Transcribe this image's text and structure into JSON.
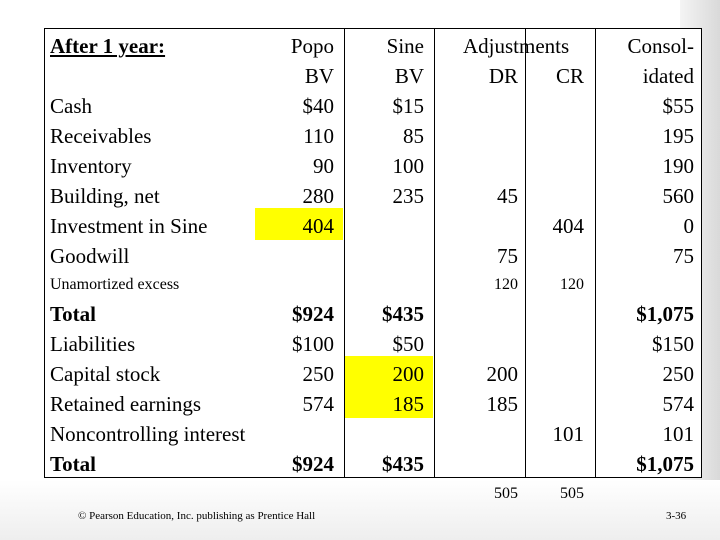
{
  "heading": "After 1 year:",
  "columns": {
    "popo": [
      "Popo",
      "BV"
    ],
    "sine": [
      "Sine",
      "BV"
    ],
    "adj": "Adjustments",
    "dr": "DR",
    "cr": "CR",
    "cons": [
      "Consol-",
      "idated"
    ]
  },
  "rows": [
    {
      "label": "Cash",
      "popo": "$40",
      "sine": "$15",
      "dr": "",
      "cr": "",
      "cons": "$55"
    },
    {
      "label": "Receivables",
      "popo": "110",
      "sine": "85",
      "dr": "",
      "cr": "",
      "cons": "195"
    },
    {
      "label": "Inventory",
      "popo": "90",
      "sine": "100",
      "dr": "",
      "cr": "",
      "cons": "190"
    },
    {
      "label": "Building, net",
      "popo": "280",
      "sine": "235",
      "dr": "45",
      "cr": "",
      "cons": "560"
    },
    {
      "label": "Investment in Sine",
      "popo": "404",
      "sine": "",
      "dr": "",
      "cr": "404",
      "cons": "0"
    },
    {
      "label": "Goodwill",
      "popo": "",
      "sine": "",
      "dr": "75",
      "cr": "",
      "cons": "75"
    }
  ],
  "unamortized": {
    "label": "Unamortized excess",
    "dr": "120",
    "cr": "120"
  },
  "total_assets": {
    "label": "Total",
    "popo": "$924",
    "sine": "$435",
    "cons": "$1,075"
  },
  "rows2": [
    {
      "label": "Liabilities",
      "popo": "$100",
      "sine": "$50",
      "dr": "",
      "cr": "",
      "cons": "$150"
    },
    {
      "label": "Capital stock",
      "popo": "250",
      "sine": "200",
      "dr": "200",
      "cr": "",
      "cons": "250"
    },
    {
      "label": "Retained earnings",
      "popo": "574",
      "sine": "185",
      "dr": "185",
      "cr": "",
      "cons": "574"
    },
    {
      "label": "Noncontrolling interest",
      "popo": "",
      "sine": "",
      "dr": "",
      "cr": "101",
      "cons": "101"
    }
  ],
  "total_le": {
    "label": "Total",
    "popo": "$924",
    "sine": "$435",
    "cons": "$1,075"
  },
  "adj_totals": {
    "dr": "505",
    "cr": "505"
  },
  "footer": {
    "copyright": "© Pearson Education, Inc. publishing as Prentice Hall",
    "page": "3-36"
  },
  "highlight_color": "#ffff00"
}
